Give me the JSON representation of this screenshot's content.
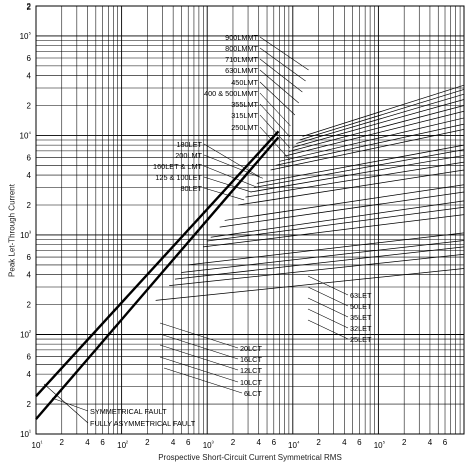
{
  "chart_data": {
    "type": "line",
    "xlabel": "Prospective Short-Circuit Current Symmetrical RMS",
    "ylabel": "Peak Let-Through Current",
    "xscale": "log",
    "yscale": "log",
    "xlim": [
      10,
      1000000
    ],
    "ylim": [
      10,
      200000
    ],
    "grid": true,
    "x_major_tick_labels": [
      "10¹",
      "10²",
      "10³",
      "10⁴",
      "10⁵"
    ],
    "x_minor_tick_labels": [
      "2",
      "4",
      "6"
    ],
    "y_major_tick_labels": [
      "10¹",
      "10²",
      "10³",
      "10⁴",
      "10⁵"
    ],
    "y_minor_tick_labels": [
      "2",
      "4",
      "6"
    ],
    "reference_lines": [
      {
        "name": "FULLY ASYMMETRICAL FAULT",
        "x": [
          10,
          6800
        ],
        "y": [
          24,
          11000
        ]
      },
      {
        "name": "SYMMETRICAL FAULT",
        "x": [
          10,
          6800
        ],
        "y": [
          14.1,
          9600
        ]
      }
    ],
    "series": [
      {
        "name": "900LMMT",
        "x": [
          13000,
          1000000
        ],
        "y": [
          9800,
          32000
        ]
      },
      {
        "name": "800LMMT",
        "x": [
          12000,
          1000000
        ],
        "y": [
          9000,
          29000
        ]
      },
      {
        "name": "710LMMT",
        "x": [
          11000,
          1000000
        ],
        "y": [
          8300,
          26000
        ]
      },
      {
        "name": "630LMMT",
        "x": [
          10000,
          1000000
        ],
        "y": [
          7600,
          23000
        ]
      },
      {
        "name": "450LMT",
        "x": [
          9000,
          1000000
        ],
        "y": [
          6900,
          20000
        ]
      },
      {
        "name": "400 & 500LMMT",
        "x": [
          8000,
          1000000
        ],
        "y": [
          6200,
          17500
        ]
      },
      {
        "name": "355LMT",
        "x": [
          7000,
          1000000
        ],
        "y": [
          5500,
          15000
        ]
      },
      {
        "name": "315LMT",
        "x": [
          6300,
          1000000
        ],
        "y": [
          5000,
          13000
        ]
      },
      {
        "name": "250LMT",
        "x": [
          5500,
          1000000
        ],
        "y": [
          4500,
          11500
        ]
      },
      {
        "name": "180LET",
        "x": [
          3500,
          1000000
        ],
        "y": [
          3000,
          7200
        ]
      },
      {
        "name": "200LMT",
        "x": [
          3800,
          1000000
        ],
        "y": [
          3300,
          8000
        ]
      },
      {
        "name": "160LET & LMT",
        "x": [
          3200,
          1000000
        ],
        "y": [
          2700,
          6300
        ]
      },
      {
        "name": "125 & 100LET",
        "x": [
          2800,
          1000000
        ],
        "y": [
          2400,
          5400
        ]
      },
      {
        "name": "80LET",
        "x": [
          2300,
          1000000
        ],
        "y": [
          2000,
          4500
        ]
      },
      {
        "name": "63LET",
        "x": [
          1600,
          1000000
        ],
        "y": [
          1400,
          3200
        ]
      },
      {
        "name": "50LET",
        "x": [
          1400,
          1000000
        ],
        "y": [
          1200,
          2700
        ]
      },
      {
        "name": "35LET",
        "x": [
          1100,
          1000000
        ],
        "y": [
          950,
          2200
        ]
      },
      {
        "name": "32LET",
        "x": [
          1000,
          1000000
        ],
        "y": [
          870,
          1900
        ]
      },
      {
        "name": "25LET",
        "x": [
          900,
          1000000
        ],
        "y": [
          760,
          1600
        ]
      },
      {
        "name": "20LCT",
        "x": [
          600,
          1000000
        ],
        "y": [
          500,
          1050
        ]
      },
      {
        "name": "16LCT",
        "x": [
          500,
          1000000
        ],
        "y": [
          420,
          880
        ]
      },
      {
        "name": "12LCT",
        "x": [
          420,
          1000000
        ],
        "y": [
          360,
          760
        ]
      },
      {
        "name": "10LCT",
        "x": [
          360,
          1000000
        ],
        "y": [
          310,
          640
        ]
      },
      {
        "name": "6LCT",
        "x": [
          250,
          1000000
        ],
        "y": [
          220,
          460
        ]
      }
    ]
  }
}
